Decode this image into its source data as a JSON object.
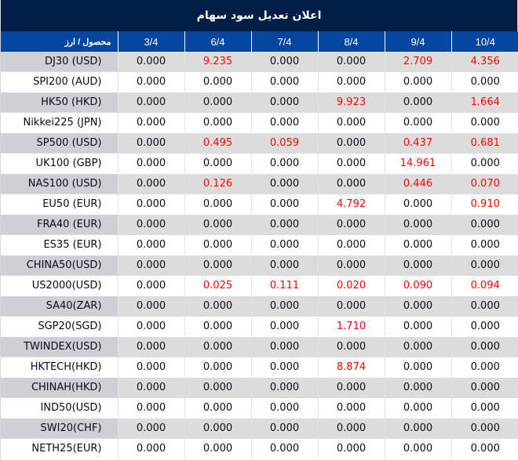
{
  "title": "اعلان تعديل سود سهام",
  "colors": {
    "title_bg": "#011e47",
    "header_bg": "#0546a0",
    "row_alt_bg": "#dcdcdc",
    "row_alt_first_col_bg": "#cfd0d5",
    "highlight_text": "#ff0000",
    "normal_text": "#0b0b1a"
  },
  "table": {
    "headers": [
      "محصول / ارز",
      "3/4",
      "6/4",
      "7/4",
      "8/4",
      "9/4",
      "10/4"
    ],
    "rows": [
      {
        "product": "DJ30 (USD)",
        "values": [
          "0.000",
          "9.235",
          "0.000",
          "0.000",
          "2.709",
          "4.356"
        ]
      },
      {
        "product": "SPI200 (AUD)",
        "values": [
          "0.000",
          "0.000",
          "0.000",
          "0.000",
          "0.000",
          "0.000"
        ]
      },
      {
        "product": "HK50 (HKD)",
        "values": [
          "0.000",
          "0.000",
          "0.000",
          "9.923",
          "0.000",
          "1.664"
        ]
      },
      {
        "product": "Nikkei225 (JPN)",
        "values": [
          "0.000",
          "0.000",
          "0.000",
          "0.000",
          "0.000",
          "0.000"
        ]
      },
      {
        "product": "SP500 (USD)",
        "values": [
          "0.000",
          "0.495",
          "0.059",
          "0.000",
          "0.437",
          "0.681"
        ]
      },
      {
        "product": "UK100 (GBP)",
        "values": [
          "0.000",
          "0.000",
          "0.000",
          "0.000",
          "14.961",
          "0.000"
        ]
      },
      {
        "product": "NAS100 (USD)",
        "values": [
          "0.000",
          "0.126",
          "0.000",
          "0.000",
          "0.446",
          "0.070"
        ]
      },
      {
        "product": "EU50 (EUR)",
        "values": [
          "0.000",
          "0.000",
          "0.000",
          "4.792",
          "0.000",
          "0.910"
        ]
      },
      {
        "product": "FRA40 (EUR)",
        "values": [
          "0.000",
          "0.000",
          "0.000",
          "0.000",
          "0.000",
          "0.000"
        ]
      },
      {
        "product": "ES35 (EUR)",
        "values": [
          "0.000",
          "0.000",
          "0.000",
          "0.000",
          "0.000",
          "0.000"
        ]
      },
      {
        "product": "CHINA50(USD)",
        "values": [
          "0.000",
          "0.000",
          "0.000",
          "0.000",
          "0.000",
          "0.000"
        ]
      },
      {
        "product": "US2000(USD)",
        "values": [
          "0.000",
          "0.025",
          "0.111",
          "0.020",
          "0.090",
          "0.094"
        ]
      },
      {
        "product": "SA40(ZAR)",
        "values": [
          "0.000",
          "0.000",
          "0.000",
          "0.000",
          "0.000",
          "0.000"
        ]
      },
      {
        "product": "SGP20(SGD)",
        "values": [
          "0.000",
          "0.000",
          "0.000",
          "1.710",
          "0.000",
          "0.000"
        ]
      },
      {
        "product": "TWINDEX(USD)",
        "values": [
          "0.000",
          "0.000",
          "0.000",
          "0.000",
          "0.000",
          "0.000"
        ]
      },
      {
        "product": "HKTECH(HKD)",
        "values": [
          "0.000",
          "0.000",
          "0.000",
          "8.874",
          "0.000",
          "0.000"
        ]
      },
      {
        "product": "CHINAH(HKD)",
        "values": [
          "0.000",
          "0.000",
          "0.000",
          "0.000",
          "0.000",
          "0.000"
        ]
      },
      {
        "product": "IND50(USD)",
        "values": [
          "0.000",
          "0.000",
          "0.000",
          "0.000",
          "0.000",
          "0.000"
        ]
      },
      {
        "product": "SWI20(CHF)",
        "values": [
          "0.000",
          "0.000",
          "0.000",
          "0.000",
          "0.000",
          "0.000"
        ]
      },
      {
        "product": "NETH25(EUR)",
        "values": [
          "0.000",
          "0.000",
          "0.000",
          "0.000",
          "0.000",
          "0.000"
        ]
      }
    ]
  }
}
